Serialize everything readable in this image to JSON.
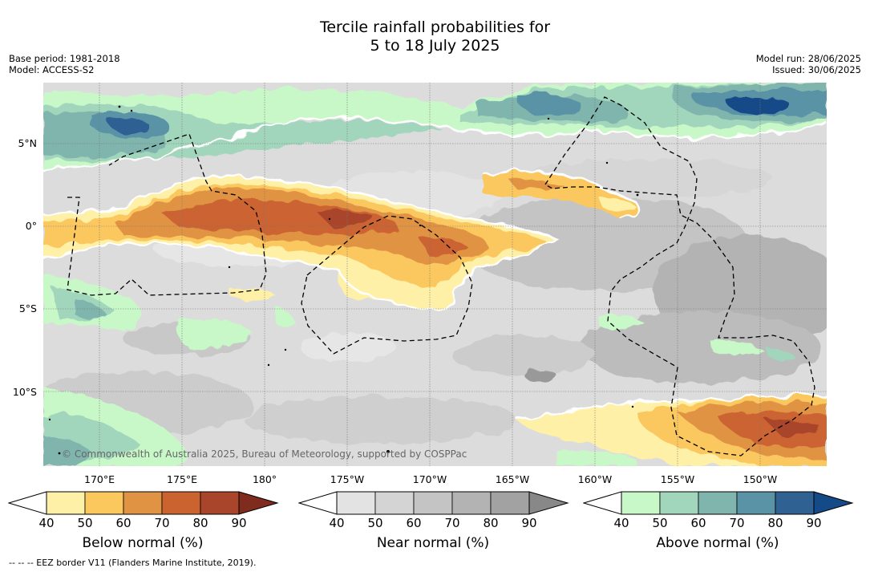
{
  "title_line1": "Tercile rainfall probabilities for",
  "title_line2": "5 to 18 July 2025",
  "base_period": "Base period: 1981-2018",
  "model": "Model: ACCESS-S2",
  "model_run": "Model run: 28/06/2025",
  "issued": "Issued: 30/06/2025",
  "lat_labels": [
    "5°N",
    "0°",
    "5°S",
    "10°S"
  ],
  "lon_labels": [
    "170°E",
    "175°E",
    "180°",
    "175°W",
    "170°W",
    "165°W",
    "160°W",
    "155°W",
    "150°W"
  ],
  "copyright": "© Commonwealth of Australia 2025, Bureau of Meteorology, supported by COSPPac",
  "footer": "--  --  -- EEZ border V11 (Flanders Marine Institute, 2019).",
  "colorbars": [
    {
      "title": "Below normal (%)",
      "ticks": [
        "40",
        "50",
        "60",
        "70",
        "80",
        "90"
      ],
      "colors": [
        "#fff0a8",
        "#fbc85e",
        "#e09343",
        "#cb6331",
        "#a9452a",
        "#7f2b1d"
      ]
    },
    {
      "title": "Near normal (%)",
      "ticks": [
        "40",
        "50",
        "60",
        "70",
        "80",
        "90"
      ],
      "colors": [
        "#e3e3e3",
        "#d4d4d4",
        "#c4c4c4",
        "#b3b3b3",
        "#a2a2a2",
        "#888888"
      ]
    },
    {
      "title": "Above normal (%)",
      "ticks": [
        "40",
        "50",
        "60",
        "70",
        "80",
        "90"
      ],
      "colors": [
        "#c8f7c8",
        "#a2d6bc",
        "#7fb5ad",
        "#5a92a6",
        "#2f6193",
        "#134a87"
      ]
    }
  ],
  "map_colors": {
    "background": "#dcdcdc",
    "grid": "#777777",
    "eez": "#000000",
    "coast": "#000000"
  }
}
